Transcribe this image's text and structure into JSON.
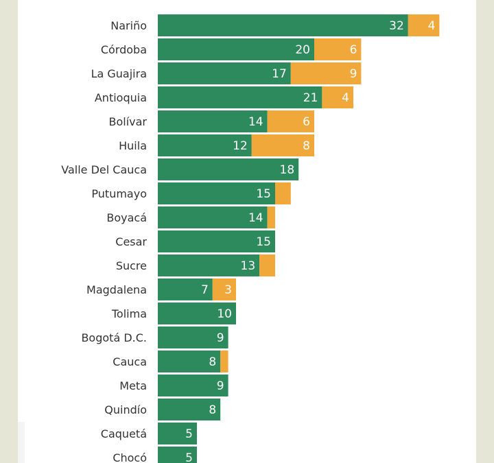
{
  "colors": {
    "green": "#2d8a5d",
    "orange": "#f0a83a",
    "background": "#e6e6d6",
    "panel": "#ffffff"
  },
  "chart_data": {
    "type": "bar",
    "orientation": "horizontal",
    "stacked": true,
    "categories": [
      "Nariño",
      "Córdoba",
      "La Guajira",
      "Antioquia",
      "Bolívar",
      "Huila",
      "Valle Del Cauca",
      "Putumayo",
      "Boyacá",
      "Cesar",
      "Sucre",
      "Magdalena",
      "Tolima",
      "Bogotá D.C.",
      "Cauca",
      "Meta",
      "Quindío",
      "Caquetá",
      "Chocó"
    ],
    "series": [
      {
        "values": [
          32,
          20,
          17,
          21,
          14,
          12,
          18,
          15,
          14,
          15,
          13,
          7,
          10,
          9,
          8,
          9,
          8,
          5,
          5
        ],
        "color": "#2d8a5d",
        "labels": [
          "32",
          "20",
          "17",
          "21",
          "14",
          "12",
          "18",
          "15",
          "14",
          "15",
          "13",
          "7",
          "10",
          "9",
          "8",
          "9",
          "8",
          "5",
          "5"
        ]
      },
      {
        "values": [
          4,
          6,
          9,
          4,
          6,
          8,
          0,
          2,
          1,
          0,
          2,
          3,
          0,
          0,
          1,
          0,
          0,
          0,
          0
        ],
        "color": "#f0a83a",
        "labels": [
          "4",
          "6",
          "9",
          "4",
          "6",
          "8",
          "",
          "",
          "",
          "",
          "",
          "3",
          "",
          "",
          "",
          "",
          "",
          "",
          ""
        ]
      }
    ],
    "xlim": [
      0,
      36
    ],
    "grid": false,
    "legend": "none"
  }
}
